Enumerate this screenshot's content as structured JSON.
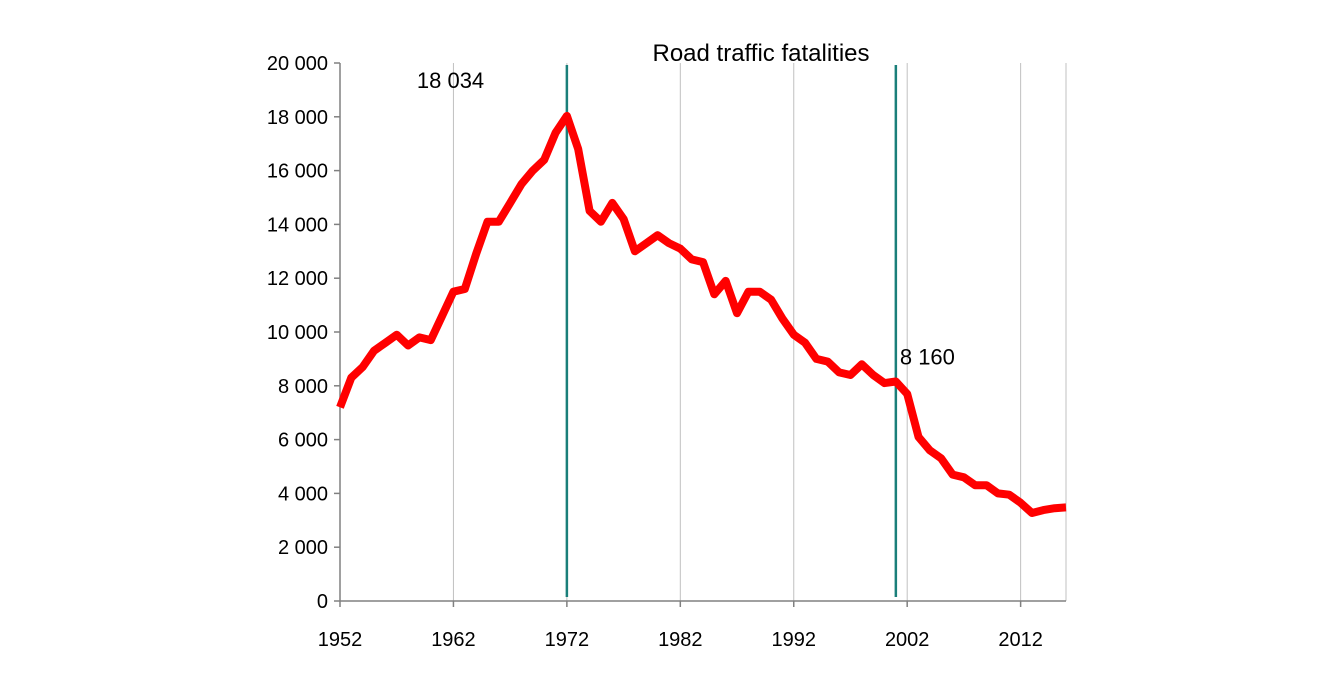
{
  "chart_data": {
    "type": "line",
    "title": "Road traffic fatalities",
    "xlabel": "",
    "ylabel": "",
    "xlim": [
      1952,
      2016
    ],
    "ylim": [
      0,
      20000
    ],
    "x_ticks": [
      1952,
      1962,
      1972,
      1982,
      1992,
      2002,
      2012
    ],
    "x_tick_labels": [
      "1952",
      "1962",
      "1972",
      "1982",
      "1992",
      "2002",
      "2012"
    ],
    "y_ticks": [
      0,
      2000,
      4000,
      6000,
      8000,
      10000,
      12000,
      14000,
      16000,
      18000,
      20000
    ],
    "y_tick_labels": [
      "0",
      "2 000",
      "4 000",
      "6 000",
      "8 000",
      "10 000",
      "12 000",
      "14 000",
      "16 000",
      "18 000",
      "20 000"
    ],
    "grid": "vertical",
    "colors": {
      "series": "#ff0000",
      "marker_lines": "#1a7f7a",
      "grid": "#c0c0c0",
      "axis": "#808080"
    },
    "series": [
      {
        "x": [
          1952,
          1953,
          1954,
          1955,
          1956,
          1957,
          1958,
          1959,
          1960,
          1961,
          1962,
          1963,
          1964,
          1965,
          1966,
          1967,
          1968,
          1969,
          1970,
          1971,
          1972,
          1973,
          1974,
          1975,
          1976,
          1977,
          1978,
          1979,
          1980,
          1981,
          1982,
          1983,
          1984,
          1985,
          1986,
          1987,
          1988,
          1989,
          1990,
          1991,
          1992,
          1993,
          1994,
          1995,
          1996,
          1997,
          1998,
          1999,
          2000,
          2001,
          2002,
          2003,
          2004,
          2005,
          2006,
          2007,
          2008,
          2009,
          2010,
          2011,
          2012,
          2013,
          2014,
          2015,
          2016
        ],
        "values": [
          7200,
          8300,
          8700,
          9300,
          9600,
          9900,
          9500,
          9800,
          9700,
          10600,
          11500,
          11600,
          12900,
          14100,
          14100,
          14800,
          15500,
          16000,
          16400,
          17400,
          18034,
          16800,
          14500,
          14100,
          14800,
          14200,
          13000,
          13300,
          13600,
          13300,
          13100,
          12700,
          12600,
          11400,
          11900,
          10700,
          11500,
          11500,
          11200,
          10500,
          9900,
          9600,
          9000,
          8900,
          8500,
          8400,
          8800,
          8400,
          8100,
          8160,
          7700,
          6100,
          5600,
          5300,
          4700,
          4600,
          4300,
          4300,
          4000,
          3950,
          3650,
          3270,
          3380,
          3450,
          3480
        ]
      }
    ],
    "marker_lines": [
      1972,
      2001
    ],
    "annotations": [
      {
        "text": "18 034",
        "x": 1972,
        "y": 18034
      },
      {
        "text": "8 160",
        "x": 2001,
        "y": 8160
      }
    ]
  }
}
